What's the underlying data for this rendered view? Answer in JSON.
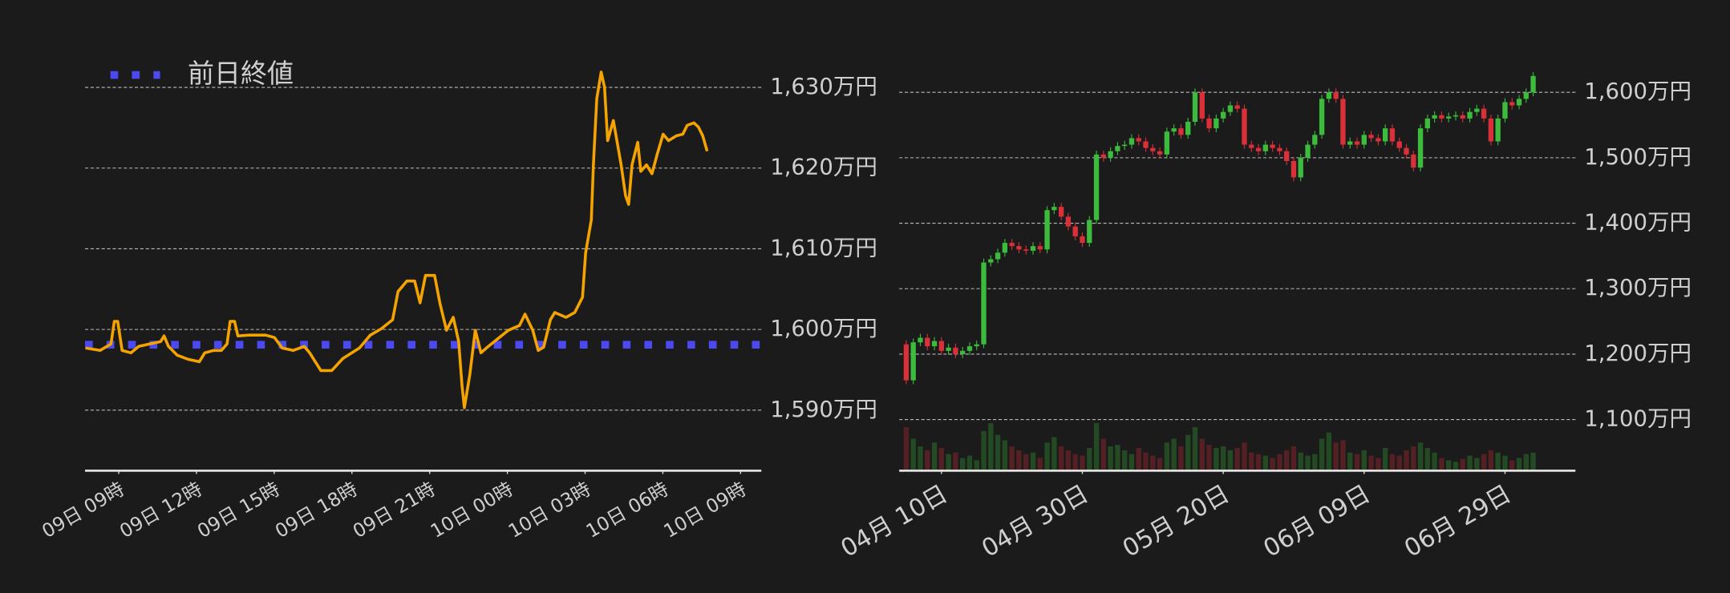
{
  "chart_data": [
    {
      "type": "line",
      "legend": "top-left",
      "grid": true,
      "xlim": [
        7.7,
        33.8
      ],
      "ylim": [
        1582.5,
        1634
      ],
      "xticks": [
        {
          "value": 9,
          "label": "09日 09時"
        },
        {
          "value": 12,
          "label": "09日 12時"
        },
        {
          "value": 15,
          "label": "09日 15時"
        },
        {
          "value": 18,
          "label": "09日 18時"
        },
        {
          "value": 21,
          "label": "09日 21時"
        },
        {
          "value": 24,
          "label": "10日 00時"
        },
        {
          "value": 27,
          "label": "10日 03時"
        },
        {
          "value": 30,
          "label": "10日 06時"
        },
        {
          "value": 33,
          "label": "10日 09時"
        }
      ],
      "yticks": [
        {
          "value": 1590,
          "label": "1,590万円"
        },
        {
          "value": 1600,
          "label": "1,600万円"
        },
        {
          "value": 1610,
          "label": "1,610万円"
        },
        {
          "value": 1620,
          "label": "1,620万円"
        },
        {
          "value": 1630,
          "label": "1,630万円"
        }
      ],
      "x": [
        7.72,
        8.28,
        8.7,
        8.83,
        8.96,
        9.13,
        9.47,
        9.77,
        10.19,
        10.62,
        10.75,
        10.92,
        11.26,
        11.68,
        12.11,
        12.32,
        12.66,
        12.96,
        13.18,
        13.3,
        13.47,
        13.6,
        14.03,
        14.67,
        15.01,
        15.31,
        15.73,
        16.16,
        16.37,
        16.8,
        17.22,
        17.65,
        18.29,
        18.71,
        19.14,
        19.57,
        19.78,
        20.12,
        20.42,
        20.63,
        20.84,
        21.19,
        21.4,
        21.65,
        21.91,
        22.12,
        22.25,
        22.34,
        22.55,
        22.76,
        22.98,
        23.19,
        23.61,
        24.04,
        24.47,
        24.68,
        24.98,
        25.19,
        25.4,
        25.66,
        25.83,
        26.26,
        26.6,
        26.9,
        27.02,
        27.24,
        27.32,
        27.45,
        27.62,
        27.75,
        27.87,
        28.09,
        28.39,
        28.56,
        28.68,
        28.81,
        29.03,
        29.15,
        29.37,
        29.58,
        29.79,
        30.01,
        30.22,
        30.52,
        30.77,
        30.94,
        31.2,
        31.37,
        31.54,
        31.71
      ],
      "series": [
        {
          "color": "#f5a300",
          "values": [
            1597.7,
            1597.4,
            1598.2,
            1601.0,
            1601.0,
            1597.4,
            1597.1,
            1597.9,
            1598.2,
            1598.5,
            1599.2,
            1597.9,
            1596.8,
            1596.3,
            1596.0,
            1597.1,
            1597.4,
            1597.4,
            1598.2,
            1601.0,
            1601.0,
            1599.2,
            1599.3,
            1599.3,
            1599.0,
            1597.7,
            1597.4,
            1597.9,
            1597.1,
            1594.9,
            1594.9,
            1596.4,
            1597.7,
            1599.3,
            1600.1,
            1601.2,
            1604.7,
            1606.0,
            1606.0,
            1603.3,
            1606.7,
            1606.7,
            1603.2,
            1599.9,
            1601.5,
            1598.5,
            1593.0,
            1590.3,
            1594.4,
            1599.9,
            1597.1,
            1597.7,
            1598.8,
            1599.9,
            1600.5,
            1601.9,
            1599.9,
            1597.4,
            1597.8,
            1601.2,
            1602.1,
            1601.5,
            1602.1,
            1604.0,
            1609.5,
            1613.6,
            1620.4,
            1628.6,
            1631.9,
            1630.0,
            1623.4,
            1625.9,
            1620.4,
            1616.6,
            1615.5,
            1620.4,
            1623.2,
            1619.6,
            1620.4,
            1619.3,
            1621.8,
            1624.2,
            1623.4,
            1624.0,
            1624.2,
            1625.3,
            1625.6,
            1625.1,
            1624.0,
            1622.1
          ]
        }
      ],
      "reference_lines": [
        {
          "name": "前日終値",
          "value": 1598.1,
          "color": "#4a4af0"
        }
      ]
    },
    {
      "type": "candlestick",
      "grid": true,
      "up_color": "#3dbb3d",
      "down_color": "#d9303a",
      "xlim": [
        -6,
        90
      ],
      "ylim": [
        1022,
        1640
      ],
      "xticks": [
        {
          "value": 0,
          "label": "04月 10日"
        },
        {
          "value": 20,
          "label": "04月 30日"
        },
        {
          "value": 40,
          "label": "05月 20日"
        },
        {
          "value": 60,
          "label": "06月 09日"
        },
        {
          "value": 80,
          "label": "06月 29日"
        }
      ],
      "yticks": [
        {
          "value": 1100,
          "label": "1,100万円"
        },
        {
          "value": 1200,
          "label": "1,200万円"
        },
        {
          "value": 1300,
          "label": "1,300万円"
        },
        {
          "value": 1400,
          "label": "1,400万円"
        },
        {
          "value": 1500,
          "label": "1,500万円"
        },
        {
          "value": 1600,
          "label": "1,600万円"
        }
      ],
      "x": [
        -5,
        -4,
        -3,
        -2,
        -1,
        0,
        1,
        2,
        3,
        4,
        5,
        6,
        7,
        8,
        9,
        10,
        11,
        12,
        13,
        14,
        15,
        16,
        17,
        18,
        19,
        20,
        21,
        22,
        23,
        24,
        25,
        26,
        27,
        28,
        29,
        30,
        31,
        32,
        33,
        34,
        35,
        36,
        37,
        38,
        39,
        40,
        41,
        42,
        43,
        44,
        45,
        46,
        47,
        48,
        49,
        50,
        51,
        52,
        53,
        54,
        55,
        56,
        57,
        58,
        59,
        60,
        61,
        62,
        63,
        64,
        65,
        66,
        67,
        68,
        69,
        70,
        71,
        72,
        73,
        74,
        75,
        76,
        77,
        78,
        79,
        80,
        81,
        82,
        83,
        84
      ],
      "open": [
        1215,
        1160,
        1218,
        1225,
        1212,
        1220,
        1205,
        1210,
        1200,
        1205,
        1212,
        1215,
        1340,
        1345,
        1355,
        1370,
        1365,
        1360,
        1358,
        1365,
        1360,
        1420,
        1425,
        1410,
        1395,
        1380,
        1370,
        1405,
        1505,
        1500,
        1510,
        1518,
        1520,
        1530,
        1525,
        1515,
        1510,
        1505,
        1540,
        1545,
        1535,
        1555,
        1600,
        1560,
        1545,
        1560,
        1570,
        1580,
        1575,
        1520,
        1515,
        1510,
        1520,
        1515,
        1510,
        1495,
        1470,
        1500,
        1520,
        1535,
        1590,
        1600,
        1590,
        1520,
        1525,
        1520,
        1535,
        1530,
        1525,
        1545,
        1525,
        1515,
        1505,
        1485,
        1545,
        1560,
        1565,
        1560,
        1563,
        1565,
        1560,
        1570,
        1575,
        1560,
        1525,
        1560,
        1585,
        1580,
        1590,
        1600
      ],
      "high": [
        1221,
        1224,
        1231,
        1231,
        1226,
        1226,
        1216,
        1216,
        1211,
        1218,
        1221,
        1346,
        1351,
        1361,
        1376,
        1376,
        1371,
        1366,
        1371,
        1371,
        1426,
        1431,
        1431,
        1416,
        1401,
        1386,
        1411,
        1511,
        1511,
        1516,
        1524,
        1526,
        1536,
        1536,
        1531,
        1521,
        1516,
        1546,
        1551,
        1551,
        1561,
        1606,
        1606,
        1566,
        1566,
        1576,
        1586,
        1586,
        1581,
        1526,
        1521,
        1526,
        1526,
        1521,
        1516,
        1501,
        1506,
        1526,
        1541,
        1596,
        1606,
        1606,
        1596,
        1531,
        1531,
        1541,
        1541,
        1536,
        1551,
        1551,
        1531,
        1521,
        1511,
        1551,
        1566,
        1571,
        1571,
        1569,
        1571,
        1571,
        1576,
        1581,
        1581,
        1566,
        1566,
        1591,
        1591,
        1596,
        1606,
        1631
      ],
      "low": [
        1154,
        1154,
        1212,
        1206,
        1206,
        1199,
        1199,
        1194,
        1194,
        1199,
        1206,
        1209,
        1334,
        1339,
        1349,
        1359,
        1354,
        1352,
        1352,
        1354,
        1354,
        1414,
        1404,
        1389,
        1374,
        1364,
        1364,
        1399,
        1494,
        1494,
        1504,
        1512,
        1514,
        1519,
        1509,
        1504,
        1499,
        1499,
        1534,
        1529,
        1529,
        1549,
        1554,
        1539,
        1539,
        1554,
        1564,
        1569,
        1514,
        1509,
        1504,
        1504,
        1509,
        1504,
        1489,
        1464,
        1464,
        1494,
        1514,
        1529,
        1584,
        1584,
        1514,
        1514,
        1514,
        1514,
        1524,
        1519,
        1519,
        1519,
        1509,
        1499,
        1479,
        1479,
        1539,
        1554,
        1554,
        1554,
        1557,
        1554,
        1554,
        1564,
        1554,
        1519,
        1519,
        1554,
        1574,
        1574,
        1584,
        1594
      ],
      "close": [
        1160,
        1218,
        1225,
        1212,
        1220,
        1205,
        1210,
        1200,
        1205,
        1212,
        1215,
        1340,
        1345,
        1355,
        1370,
        1365,
        1360,
        1358,
        1365,
        1360,
        1420,
        1425,
        1410,
        1395,
        1380,
        1370,
        1405,
        1505,
        1500,
        1510,
        1518,
        1520,
        1530,
        1525,
        1515,
        1510,
        1505,
        1540,
        1545,
        1535,
        1555,
        1600,
        1560,
        1545,
        1560,
        1570,
        1580,
        1575,
        1520,
        1515,
        1510,
        1520,
        1515,
        1510,
        1495,
        1470,
        1500,
        1520,
        1535,
        1590,
        1600,
        1590,
        1520,
        1525,
        1520,
        1535,
        1530,
        1525,
        1545,
        1525,
        1515,
        1505,
        1485,
        1545,
        1560,
        1565,
        1560,
        1563,
        1565,
        1560,
        1570,
        1575,
        1560,
        1525,
        1560,
        1585,
        1580,
        1590,
        1600,
        1625
      ],
      "volume": [
        55,
        40,
        30,
        25,
        35,
        28,
        20,
        22,
        15,
        18,
        12,
        50,
        60,
        45,
        38,
        30,
        25,
        20,
        22,
        15,
        35,
        42,
        30,
        25,
        20,
        18,
        28,
        60,
        40,
        30,
        32,
        25,
        20,
        28,
        22,
        18,
        15,
        35,
        40,
        30,
        45,
        55,
        40,
        32,
        28,
        30,
        25,
        28,
        35,
        22,
        20,
        18,
        15,
        20,
        25,
        30,
        22,
        18,
        20,
        40,
        48,
        35,
        38,
        22,
        20,
        25,
        18,
        15,
        28,
        20,
        18,
        25,
        30,
        35,
        28,
        22,
        15,
        12,
        10,
        14,
        18,
        15,
        20,
        25,
        22,
        18,
        12,
        15,
        20,
        22
      ]
    }
  ]
}
